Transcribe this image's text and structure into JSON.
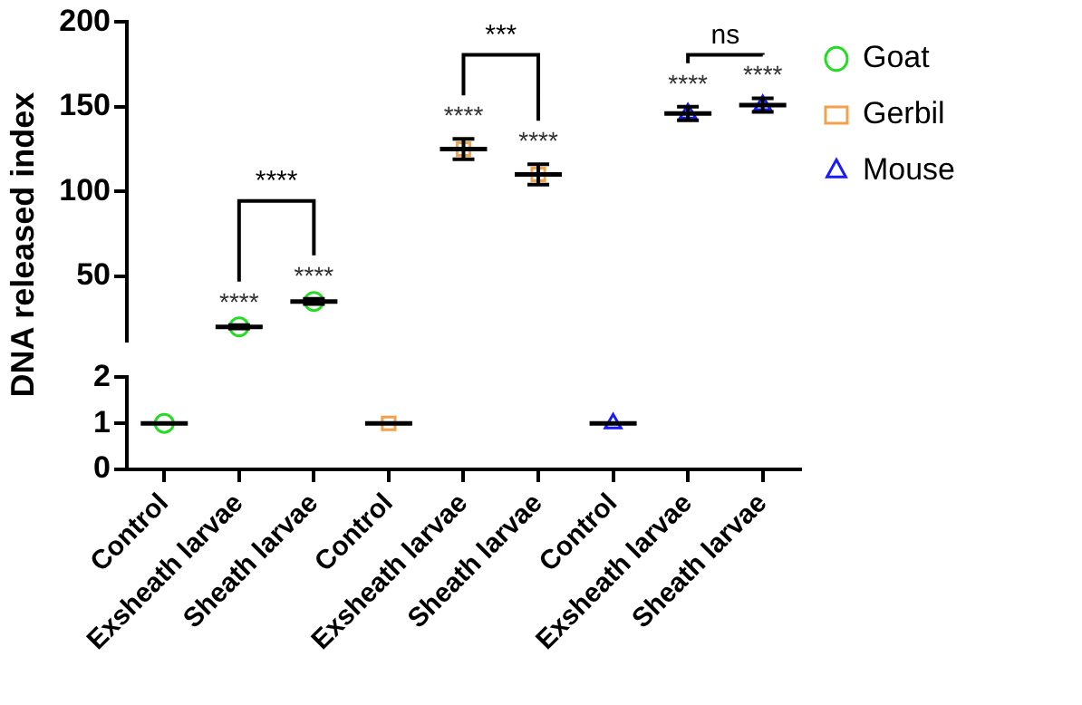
{
  "chart_data": [
    {
      "type": "scatter",
      "ylabel": "DNA released index",
      "categories": [
        "Control",
        "Exsheath larvae",
        "Sheath larvae",
        "Control",
        "Exsheath larvae",
        "Sheath larvae",
        "Control",
        "Exsheath larvae",
        "Sheath larvae"
      ],
      "ylim": [
        12,
        200
      ],
      "yticks": [
        50,
        100,
        150,
        200
      ],
      "grid": false,
      "legend": "top right",
      "tick_labels": "y",
      "annotations": [
        "****",
        "***",
        "ns"
      ],
      "series": [
        {
          "name": "Goat",
          "color": "#22dd22",
          "marker": "circle",
          "values": [
            null,
            20,
            35,
            null,
            null,
            null,
            null,
            null,
            null
          ],
          "errors": [
            null,
            1,
            1.5,
            null,
            null,
            null,
            null,
            null,
            null
          ],
          "value_labels": [
            null,
            "****",
            "****",
            null,
            null,
            null,
            null,
            null,
            null
          ]
        },
        {
          "name": "Gerbil",
          "color": "#f5a04a",
          "marker": "square",
          "values": [
            null,
            null,
            null,
            null,
            125,
            110,
            null,
            null,
            null
          ],
          "errors": [
            null,
            null,
            null,
            null,
            6,
            6,
            null,
            null,
            null
          ],
          "value_labels": [
            null,
            null,
            null,
            null,
            "****",
            "****",
            null,
            null,
            null
          ]
        },
        {
          "name": "Mouse",
          "color": "#1a1aff",
          "marker": "triangle",
          "values": [
            null,
            null,
            null,
            null,
            null,
            null,
            null,
            146,
            151
          ],
          "errors": [
            null,
            null,
            null,
            null,
            null,
            null,
            null,
            4,
            4
          ],
          "value_labels": [
            null,
            null,
            null,
            null,
            null,
            null,
            null,
            "****",
            "****"
          ]
        }
      ]
    },
    {
      "type": "scatter",
      "categories": [
        "Control",
        "Exsheath larvae",
        "Sheath larvae",
        "Control",
        "Exsheath larvae",
        "Sheath larvae",
        "Control",
        "Exsheath larvae",
        "Sheath larvae"
      ],
      "ylim": [
        0,
        2
      ],
      "yticks": [
        0,
        1,
        2
      ],
      "grid": false,
      "legend": false,
      "series": [
        {
          "color": "#22dd22",
          "marker": "circle",
          "values": [
            1,
            null,
            null,
            null,
            null,
            null,
            null,
            null,
            null
          ],
          "errors": [
            0,
            null,
            null,
            null,
            null,
            null,
            null,
            null,
            null
          ]
        },
        {
          "color": "#f5a04a",
          "marker": "square",
          "values": [
            null,
            null,
            null,
            1,
            null,
            null,
            null,
            null,
            null
          ],
          "errors": [
            null,
            null,
            null,
            0,
            null,
            null,
            null,
            null,
            null
          ]
        },
        {
          "color": "#1a1aff",
          "marker": "triangle",
          "values": [
            null,
            null,
            null,
            null,
            null,
            null,
            1,
            null,
            null
          ],
          "errors": [
            null,
            null,
            null,
            null,
            null,
            null,
            0,
            null,
            null
          ]
        }
      ]
    }
  ]
}
